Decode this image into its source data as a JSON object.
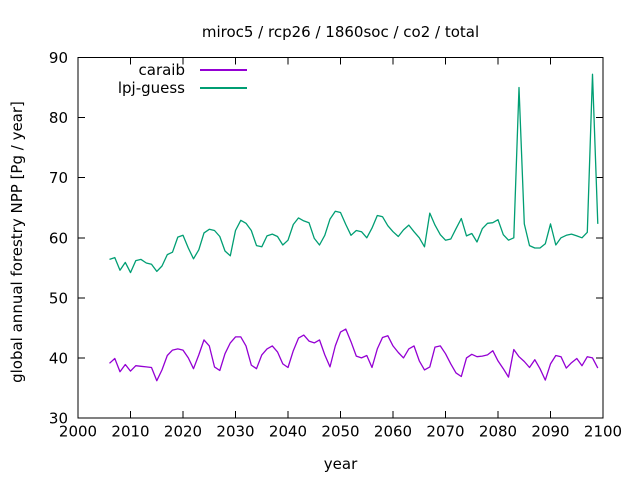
{
  "chart_data": {
    "type": "line",
    "title": "miroc5 / rcp26 / 1860soc / co2 / total",
    "xlabel": "year",
    "ylabel": "global annual forestry NPP [Pg / year]",
    "xlim": [
      2000,
      2100
    ],
    "ylim": [
      30,
      90
    ],
    "xticks": [
      2000,
      2010,
      2020,
      2030,
      2040,
      2050,
      2060,
      2070,
      2080,
      2090,
      2100
    ],
    "yticks": [
      30,
      40,
      50,
      60,
      70,
      80,
      90
    ],
    "grid": false,
    "legend_position": "top-left-inside",
    "background_color": "#ffffff",
    "border_color": "#000000",
    "x": [
      2006,
      2007,
      2008,
      2009,
      2010,
      2011,
      2012,
      2013,
      2014,
      2015,
      2016,
      2017,
      2018,
      2019,
      2020,
      2021,
      2022,
      2023,
      2024,
      2025,
      2026,
      2027,
      2028,
      2029,
      2030,
      2031,
      2032,
      2033,
      2034,
      2035,
      2036,
      2037,
      2038,
      2039,
      2040,
      2041,
      2042,
      2043,
      2044,
      2045,
      2046,
      2047,
      2048,
      2049,
      2050,
      2051,
      2052,
      2053,
      2054,
      2055,
      2056,
      2057,
      2058,
      2059,
      2060,
      2061,
      2062,
      2063,
      2064,
      2065,
      2066,
      2067,
      2068,
      2069,
      2070,
      2071,
      2072,
      2073,
      2074,
      2075,
      2076,
      2077,
      2078,
      2079,
      2080,
      2081,
      2082,
      2083,
      2084,
      2085,
      2086,
      2087,
      2088,
      2089,
      2090,
      2091,
      2092,
      2093,
      2094,
      2095,
      2096,
      2097,
      2098,
      2099
    ],
    "series": [
      {
        "name": "caraib",
        "color": "#9400d3",
        "values": [
          39.1,
          39.9,
          37.7,
          38.9,
          37.8,
          38.7,
          38.6,
          38.5,
          38.4,
          36.2,
          38.0,
          40.4,
          41.3,
          41.5,
          41.3,
          40.0,
          38.2,
          40.5,
          43.0,
          42.0,
          38.5,
          37.9,
          40.7,
          42.5,
          43.5,
          43.5,
          42.0,
          38.8,
          38.2,
          40.5,
          41.5,
          42.0,
          41.0,
          39.0,
          38.4,
          41.2,
          43.3,
          43.8,
          42.8,
          42.5,
          43.0,
          40.5,
          38.5,
          42.0,
          44.3,
          44.8,
          42.7,
          40.3,
          40.0,
          40.4,
          38.4,
          41.5,
          43.4,
          43.7,
          42.0,
          40.9,
          40.0,
          41.5,
          42.0,
          39.5,
          38.0,
          38.5,
          41.8,
          42.0,
          40.7,
          39.0,
          37.5,
          36.9,
          40.0,
          40.6,
          40.2,
          40.3,
          40.5,
          41.2,
          39.5,
          38.2,
          36.8,
          41.4,
          40.2,
          39.4,
          38.4,
          39.7,
          38.2,
          36.3,
          39.0,
          40.4,
          40.2,
          38.3,
          39.2,
          39.9,
          38.7,
          40.2,
          40.0,
          38.3
        ]
      },
      {
        "name": "lpj-guess",
        "color": "#009e73",
        "values": [
          56.4,
          56.7,
          54.6,
          55.9,
          54.2,
          56.2,
          56.4,
          55.8,
          55.6,
          54.4,
          55.3,
          57.2,
          57.6,
          60.1,
          60.4,
          58.3,
          56.5,
          58.0,
          60.8,
          61.4,
          61.2,
          60.2,
          57.8,
          57.0,
          61.2,
          62.9,
          62.4,
          61.2,
          58.7,
          58.5,
          60.3,
          60.6,
          60.2,
          58.8,
          59.6,
          62.2,
          63.3,
          62.8,
          62.5,
          59.9,
          58.8,
          60.4,
          63.1,
          64.4,
          64.2,
          62.2,
          60.4,
          61.2,
          61.0,
          60.0,
          61.6,
          63.7,
          63.5,
          62.0,
          61.0,
          60.2,
          61.3,
          62.1,
          61.0,
          60.0,
          58.5,
          64.1,
          62.1,
          60.5,
          59.6,
          59.8,
          61.5,
          63.2,
          60.3,
          60.7,
          59.3,
          61.5,
          62.4,
          62.5,
          63.0,
          60.5,
          59.6,
          60.0,
          85.0,
          62.3,
          58.7,
          58.3,
          58.3,
          59.0,
          62.3,
          58.8,
          60.0,
          60.4,
          60.6,
          60.3,
          60.0,
          60.9,
          87.2,
          62.3
        ]
      }
    ]
  }
}
